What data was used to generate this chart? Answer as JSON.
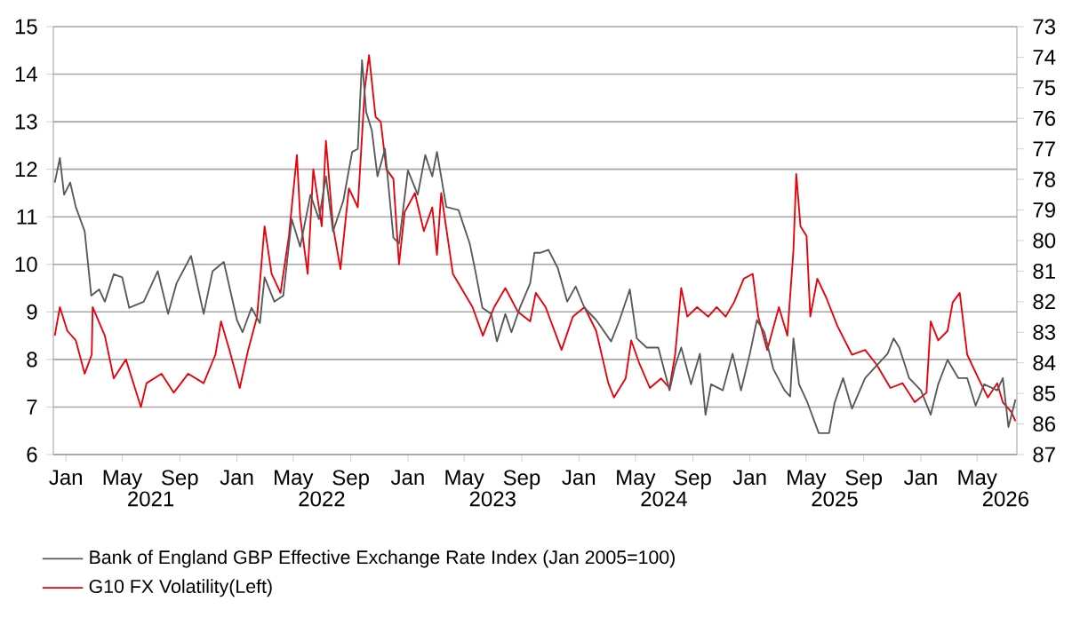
{
  "chart_data": {
    "type": "line",
    "xlim": [
      "2020-12-05",
      "2026-07-25"
    ],
    "xticks": [
      {
        "value": "2021-01-01",
        "label": "Jan"
      },
      {
        "value": "2021-05-01",
        "label": "May"
      },
      {
        "value": "2021-09-01",
        "label": "Sep"
      },
      {
        "value": "2022-01-01",
        "label": "Jan"
      },
      {
        "value": "2022-05-01",
        "label": "May"
      },
      {
        "value": "2022-09-01",
        "label": "Sep"
      },
      {
        "value": "2023-01-01",
        "label": "Jan"
      },
      {
        "value": "2023-05-01",
        "label": "May"
      },
      {
        "value": "2023-09-01",
        "label": "Sep"
      },
      {
        "value": "2024-01-01",
        "label": "Jan"
      },
      {
        "value": "2024-05-01",
        "label": "May"
      },
      {
        "value": "2024-09-01",
        "label": "Sep"
      },
      {
        "value": "2025-01-01",
        "label": "Jan"
      },
      {
        "value": "2025-05-01",
        "label": "May"
      },
      {
        "value": "2025-09-01",
        "label": "Sep"
      },
      {
        "value": "2026-01-01",
        "label": "Jan"
      },
      {
        "value": "2026-05-01",
        "label": "May"
      }
    ],
    "x2lim": [
      "2020-12-05",
      "2026-07-25"
    ],
    "x2ticks": [
      {
        "value": "2021-07-01",
        "label": "2021"
      },
      {
        "value": "2022-07-01",
        "label": "2022"
      },
      {
        "value": "2023-07-01",
        "label": "2023"
      },
      {
        "value": "2024-07-01",
        "label": "2024"
      },
      {
        "value": "2025-07-01",
        "label": "2025"
      },
      {
        "value": "2026-07-01",
        "label": "2026"
      }
    ],
    "ylim": [
      6,
      15
    ],
    "yticks": [
      6,
      7,
      8,
      9,
      10,
      11,
      12,
      13,
      14,
      15
    ],
    "y2lim": [
      87,
      73
    ],
    "y2ticks": [
      73,
      74,
      75,
      76,
      77,
      78,
      79,
      80,
      81,
      82,
      83,
      84,
      85,
      86,
      87
    ],
    "grid": "y",
    "legend": "bottom",
    "line_style": "solid",
    "series": [
      {
        "name": "Bank of England GBP Effective Exchange Rate Index (Jan 2005=100)",
        "color": "#595959",
        "axis": "y2",
        "x": [
          "2020-12-08",
          "2020-12-19",
          "2020-12-28",
          "2021-01-10",
          "2021-01-22",
          "2021-02-10",
          "2021-02-16",
          "2021-02-24",
          "2021-03-13",
          "2021-03-25",
          "2021-04-13",
          "2021-05-01",
          "2021-05-16",
          "2021-06-16",
          "2021-07-16",
          "2021-08-07",
          "2021-08-25",
          "2021-09-25",
          "2021-10-22",
          "2021-11-10",
          "2021-12-04",
          "2022-01-01",
          "2022-01-13",
          "2022-02-01",
          "2022-02-19",
          "2022-03-01",
          "2022-03-22",
          "2022-04-10",
          "2022-04-28",
          "2022-05-16",
          "2022-06-07",
          "2022-06-25",
          "2022-07-10",
          "2022-07-25",
          "2022-08-16",
          "2022-09-04",
          "2022-09-16",
          "2022-09-25",
          "2022-10-04",
          "2022-10-16",
          "2022-10-28",
          "2022-11-13",
          "2022-12-01",
          "2022-12-13",
          "2023-01-01",
          "2023-01-22",
          "2023-02-07",
          "2023-02-22",
          "2023-03-04",
          "2023-03-24",
          "2023-04-19",
          "2023-05-13",
          "2023-05-25",
          "2023-06-09",
          "2023-06-28",
          "2023-07-10",
          "2023-07-28",
          "2023-08-10",
          "2023-08-28",
          "2023-09-19",
          "2023-09-28",
          "2023-10-10",
          "2023-10-28",
          "2023-11-17",
          "2023-12-07",
          "2023-12-25",
          "2024-01-13",
          "2024-02-07",
          "2024-03-10",
          "2024-03-28",
          "2024-04-19",
          "2024-05-04",
          "2024-05-25",
          "2024-06-19",
          "2024-07-13",
          "2024-07-25",
          "2024-08-07",
          "2024-08-28",
          "2024-09-16",
          "2024-09-28",
          "2024-10-10",
          "2024-11-04",
          "2024-11-25",
          "2024-12-13",
          "2025-01-01",
          "2025-01-16",
          "2025-02-01",
          "2025-02-20",
          "2025-03-16",
          "2025-03-28",
          "2025-04-04",
          "2025-04-16",
          "2025-05-04",
          "2025-05-28",
          "2025-06-19",
          "2025-07-01",
          "2025-07-19",
          "2025-08-07",
          "2025-09-04",
          "2025-09-28",
          "2025-10-22",
          "2025-11-04",
          "2025-11-16",
          "2025-12-07",
          "2026-01-01",
          "2026-01-22",
          "2026-02-07",
          "2026-02-27",
          "2026-03-22",
          "2026-04-10",
          "2026-04-28",
          "2026-05-16",
          "2026-06-13",
          "2026-06-25",
          "2026-07-07",
          "2026-07-22"
        ],
        "values": [
          78.1,
          77.3,
          78.5,
          78.1,
          78.9,
          79.7,
          80.6,
          81.8,
          81.6,
          82.0,
          81.1,
          81.2,
          82.2,
          82.0,
          81.0,
          82.4,
          81.4,
          80.5,
          82.4,
          81.0,
          80.7,
          82.6,
          83.0,
          82.2,
          82.7,
          81.2,
          82.0,
          81.8,
          79.3,
          80.2,
          78.5,
          79.3,
          77.9,
          79.7,
          78.7,
          77.1,
          77.0,
          74.1,
          75.8,
          76.4,
          77.9,
          77.0,
          79.9,
          80.1,
          77.7,
          78.5,
          77.2,
          77.9,
          77.1,
          78.9,
          79.0,
          80.1,
          81.0,
          82.2,
          82.4,
          83.3,
          82.4,
          83.0,
          82.2,
          81.4,
          80.4,
          80.4,
          80.3,
          80.9,
          82.0,
          81.5,
          82.2,
          82.6,
          83.3,
          82.6,
          81.6,
          83.2,
          83.5,
          83.5,
          84.9,
          84.1,
          83.5,
          84.7,
          83.7,
          85.7,
          84.7,
          84.9,
          83.7,
          84.9,
          83.7,
          82.6,
          83.0,
          84.2,
          84.9,
          85.1,
          83.2,
          84.7,
          85.3,
          86.3,
          86.3,
          85.3,
          84.5,
          85.5,
          84.5,
          84.1,
          83.7,
          83.2,
          83.5,
          84.5,
          84.9,
          85.7,
          84.7,
          83.9,
          84.5,
          84.5,
          85.4,
          84.7,
          84.9,
          84.5,
          86.1,
          85.2
        ]
      },
      {
        "name": "G10 FX Volatility(Left)",
        "color": "#e8000b",
        "x": [
          "2020-12-08",
          "2020-12-19",
          "2021-01-04",
          "2021-01-22",
          "2021-02-10",
          "2021-02-25",
          "2021-02-27",
          "2021-03-25",
          "2021-04-13",
          "2021-05-09",
          "2021-06-10",
          "2021-06-22",
          "2021-07-24",
          "2021-08-19",
          "2021-09-19",
          "2021-10-22",
          "2021-11-16",
          "2021-11-28",
          "2021-12-16",
          "2022-01-07",
          "2022-01-25",
          "2022-02-13",
          "2022-03-01",
          "2022-03-16",
          "2022-04-04",
          "2022-04-22",
          "2022-05-09",
          "2022-05-16",
          "2022-06-01",
          "2022-06-13",
          "2022-07-01",
          "2022-07-10",
          "2022-07-25",
          "2022-08-10",
          "2022-08-28",
          "2022-09-16",
          "2022-10-01",
          "2022-10-10",
          "2022-10-24",
          "2022-11-04",
          "2022-11-16",
          "2022-12-01",
          "2022-12-13",
          "2022-12-25",
          "2023-01-16",
          "2023-02-04",
          "2023-02-22",
          "2023-03-04",
          "2023-03-13",
          "2023-04-07",
          "2023-04-25",
          "2023-05-19",
          "2023-06-10",
          "2023-07-04",
          "2023-07-28",
          "2023-08-24",
          "2023-09-19",
          "2023-10-01",
          "2023-10-22",
          "2023-11-25",
          "2023-12-19",
          "2024-01-13",
          "2024-02-07",
          "2024-03-04",
          "2024-03-16",
          "2024-04-10",
          "2024-04-22",
          "2024-05-10",
          "2024-06-01",
          "2024-06-25",
          "2024-07-13",
          "2024-07-25",
          "2024-08-07",
          "2024-08-20",
          "2024-09-10",
          "2024-10-04",
          "2024-10-22",
          "2024-11-10",
          "2024-11-28",
          "2024-12-19",
          "2025-01-07",
          "2025-01-19",
          "2025-02-07",
          "2025-03-04",
          "2025-03-22",
          "2025-04-04",
          "2025-04-10",
          "2025-04-19",
          "2025-05-02",
          "2025-05-10",
          "2025-05-25",
          "2025-06-13",
          "2025-07-07",
          "2025-08-07",
          "2025-09-04",
          "2025-09-28",
          "2025-10-28",
          "2025-11-23",
          "2025-12-19",
          "2026-01-13",
          "2026-01-22",
          "2026-02-07",
          "2026-02-27",
          "2026-03-10",
          "2026-03-25",
          "2026-04-10",
          "2026-05-04",
          "2026-05-24",
          "2026-06-13",
          "2026-06-25",
          "2026-07-13",
          "2026-07-22"
        ],
        "values": [
          8.5,
          9.1,
          8.6,
          8.4,
          7.7,
          8.1,
          9.1,
          8.5,
          7.6,
          8.0,
          7.0,
          7.5,
          7.7,
          7.3,
          7.7,
          7.5,
          8.1,
          8.8,
          8.2,
          7.4,
          8.2,
          8.9,
          10.8,
          9.8,
          9.4,
          10.6,
          12.3,
          11.0,
          9.8,
          12.0,
          10.8,
          12.6,
          10.8,
          9.9,
          11.6,
          11.2,
          13.7,
          14.4,
          13.1,
          13.0,
          12.0,
          11.8,
          10.0,
          11.1,
          11.5,
          10.7,
          11.2,
          10.2,
          11.5,
          9.8,
          9.5,
          9.1,
          8.5,
          9.1,
          9.5,
          9.0,
          8.8,
          9.4,
          9.1,
          8.2,
          8.9,
          9.1,
          8.6,
          7.5,
          7.2,
          7.6,
          8.4,
          7.9,
          7.4,
          7.6,
          7.4,
          8.1,
          9.5,
          8.9,
          9.1,
          8.9,
          9.1,
          8.9,
          9.2,
          9.7,
          9.8,
          8.9,
          8.2,
          9.1,
          8.5,
          10.3,
          11.9,
          10.8,
          10.6,
          8.9,
          9.7,
          9.3,
          8.7,
          8.1,
          8.2,
          7.9,
          7.4,
          7.5,
          7.1,
          7.3,
          8.8,
          8.4,
          8.6,
          9.2,
          9.4,
          8.1,
          7.6,
          7.2,
          7.5,
          7.1,
          6.9,
          6.7
        ]
      }
    ]
  }
}
